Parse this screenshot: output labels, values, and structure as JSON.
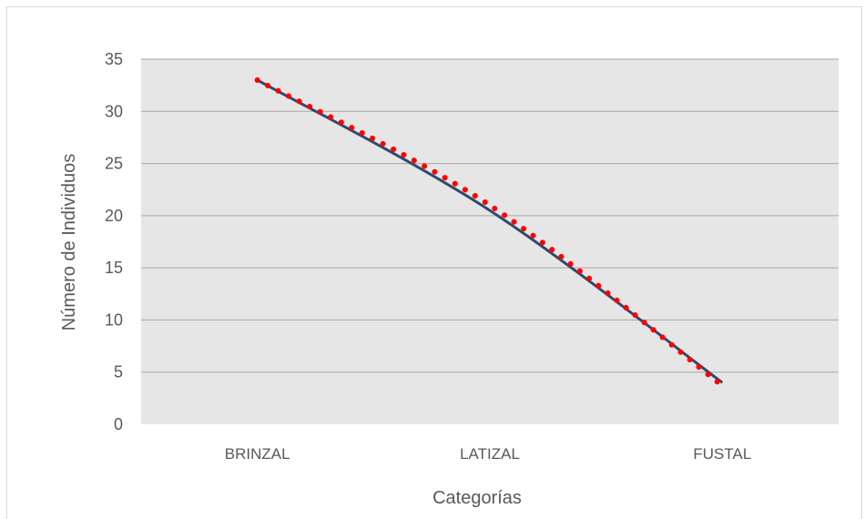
{
  "chart_data": {
    "type": "line",
    "categories": [
      "BRINZAL",
      "LATIZAL",
      "FUSTAL"
    ],
    "series": [
      {
        "values": [
          33,
          20.5,
          4
        ],
        "style": "solid",
        "color": "#2e4a6e"
      },
      {
        "values": [
          33,
          21,
          3.7
        ],
        "style": "dotted",
        "color": "#ff0000"
      }
    ],
    "xlabel": "Categorías",
    "ylabel": "Número de Individuos",
    "ylim": [
      0,
      35
    ],
    "yticks": [
      0,
      5,
      10,
      15,
      20,
      25,
      30,
      35
    ],
    "grid": true,
    "plot_background": "#e6e6e6",
    "gridline_color": "#a6a6a6",
    "legend": "none"
  }
}
